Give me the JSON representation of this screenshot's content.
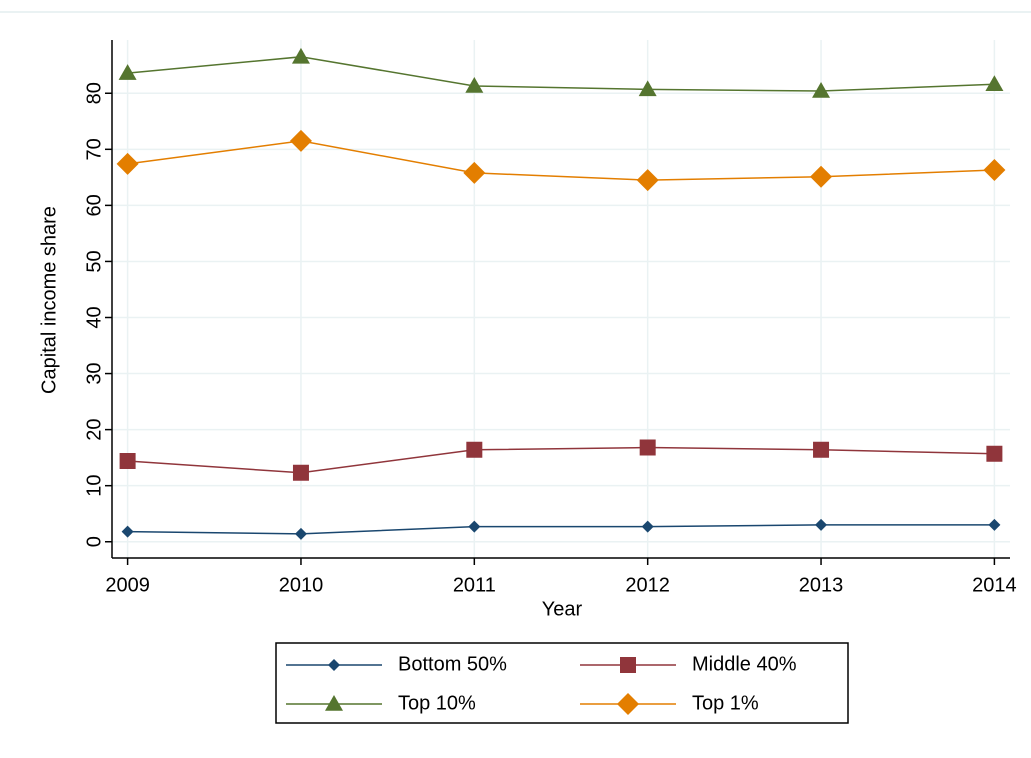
{
  "chart_data": {
    "type": "line",
    "x_label": "Year",
    "y_label": "Capital income share",
    "x": [
      2009,
      2010,
      2011,
      2012,
      2013,
      2014
    ],
    "xlim": [
      2008.91,
      2014.09
    ],
    "xticks": [
      2009,
      2010,
      2011,
      2012,
      2013,
      2014
    ],
    "ylim": [
      -2.9,
      89.5
    ],
    "yticks": [
      0,
      10,
      20,
      30,
      40,
      50,
      60,
      70,
      80
    ],
    "grid": true,
    "legend": "bottom",
    "series": [
      {
        "name": "Bottom 50%",
        "color": "#1a476f",
        "marker": "diamond",
        "values": [
          1.8,
          1.4,
          2.7,
          2.7,
          3.0,
          3.0
        ]
      },
      {
        "name": "Middle 40%",
        "color": "#90353b",
        "marker": "square",
        "values": [
          14.4,
          12.3,
          16.4,
          16.8,
          16.4,
          15.7
        ]
      },
      {
        "name": "Top 10%",
        "color": "#55752f",
        "marker": "triangle",
        "values": [
          83.6,
          86.5,
          81.3,
          80.7,
          80.4,
          81.6
        ]
      },
      {
        "name": "Top 1%",
        "color": "#e37e00",
        "marker": "bigdiamond",
        "values": [
          67.4,
          71.5,
          65.8,
          64.5,
          65.1,
          66.3
        ]
      }
    ]
  }
}
